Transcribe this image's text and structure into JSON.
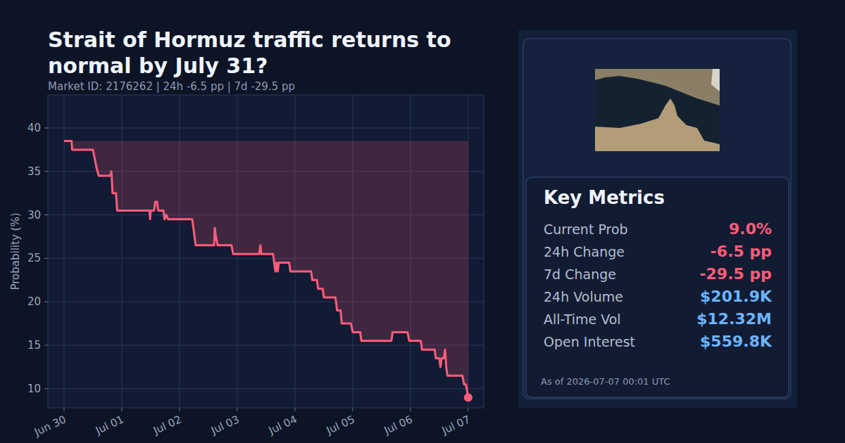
{
  "chart_data": {
    "type": "line",
    "title": "Strait of Hormuz traffic returns to normal by July 31?",
    "subtitle": "Market ID: 2176262   |   24h -6.5 pp   |   7d -29.5 pp",
    "y_label": "Probability (%)",
    "x": [
      0,
      0.13,
      0.14,
      0.5,
      0.53,
      0.56,
      0.6,
      0.8,
      0.82,
      0.84,
      0.9,
      0.92,
      1.48,
      1.49,
      1.5,
      1.56,
      1.58,
      1.61,
      1.63,
      1.72,
      1.74,
      1.77,
      1.8,
      2.22,
      2.25,
      2.28,
      2.6,
      2.61,
      2.63,
      2.66,
      2.9,
      2.93,
      3.38,
      3.4,
      3.42,
      3.62,
      3.64,
      3.66,
      3.68,
      3.7,
      3.72,
      3.9,
      3.92,
      4.28,
      4.3,
      4.38,
      4.4,
      4.48,
      4.5,
      4.7,
      4.73,
      4.79,
      4.81,
      4.97,
      5.0,
      5.13,
      5.15,
      5.67,
      5.69,
      5.95,
      5.98,
      6.18,
      6.2,
      6.42,
      6.44,
      6.5,
      6.52,
      6.54,
      6.58,
      6.6,
      6.62,
      6.64,
      6.9,
      6.93,
      6.96,
      7.0
    ],
    "series": [
      {
        "name": "Probability",
        "color": "#ff5c7a",
        "values": [
          38.5,
          38.5,
          37.5,
          37.5,
          36.5,
          35.5,
          34.5,
          34.5,
          35,
          32.5,
          32.5,
          30.5,
          30.5,
          29.5,
          30.5,
          30.5,
          31.5,
          31.5,
          30.5,
          30.5,
          29.5,
          30,
          29.5,
          29.5,
          28,
          26.5,
          26.5,
          28.5,
          27.5,
          26.5,
          26.5,
          25.5,
          25.5,
          26.5,
          25.5,
          25.5,
          24.5,
          23.5,
          24.5,
          23.5,
          24.5,
          24.5,
          23.5,
          23.5,
          22.5,
          22.5,
          21.5,
          21.5,
          20.5,
          20.5,
          19,
          19,
          17.5,
          17.5,
          16.5,
          16.5,
          15.5,
          15.5,
          16.5,
          16.5,
          15.5,
          15.5,
          14.5,
          14.5,
          13.5,
          13.5,
          12.5,
          13.5,
          13.5,
          14.5,
          12.5,
          11.5,
          11.5,
          10.5,
          10.5,
          9.0
        ]
      }
    ],
    "xlim": [
      -0.28,
      7.27
    ],
    "xticks": [
      {
        "value": 0,
        "label": "Jun 30"
      },
      {
        "value": 1,
        "label": "Jul 01"
      },
      {
        "value": 2,
        "label": "Jul 02"
      },
      {
        "value": 3,
        "label": "Jul 03"
      },
      {
        "value": 4,
        "label": "Jul 04"
      },
      {
        "value": 5,
        "label": "Jul 05"
      },
      {
        "value": 6,
        "label": "Jul 06"
      },
      {
        "value": 7,
        "label": "Jul 07"
      }
    ],
    "ylim": [
      7.8,
      43.8
    ],
    "yticks": [
      10,
      15,
      20,
      25,
      30,
      35,
      40
    ],
    "grid": true
  },
  "metrics_panel": {
    "title": "Key Metrics",
    "rows": [
      {
        "label": "Current Prob",
        "value": "9.0%",
        "color": "#ff5c7a"
      },
      {
        "label": "24h Change",
        "value": "-6.5 pp",
        "color": "#ff5c7a"
      },
      {
        "label": "7d Change",
        "value": "-29.5 pp",
        "color": "#ff5c7a"
      },
      {
        "label": "24h Volume",
        "value": "$201.9K",
        "color": "#6cb4ff"
      },
      {
        "label": "All-Time Vol",
        "value": "$12.32M",
        "color": "#6cb4ff"
      },
      {
        "label": "Open Interest",
        "value": "$559.8K",
        "color": "#6cb4ff"
      }
    ],
    "timestamp": "As of 2026-07-07 00:01 UTC"
  }
}
